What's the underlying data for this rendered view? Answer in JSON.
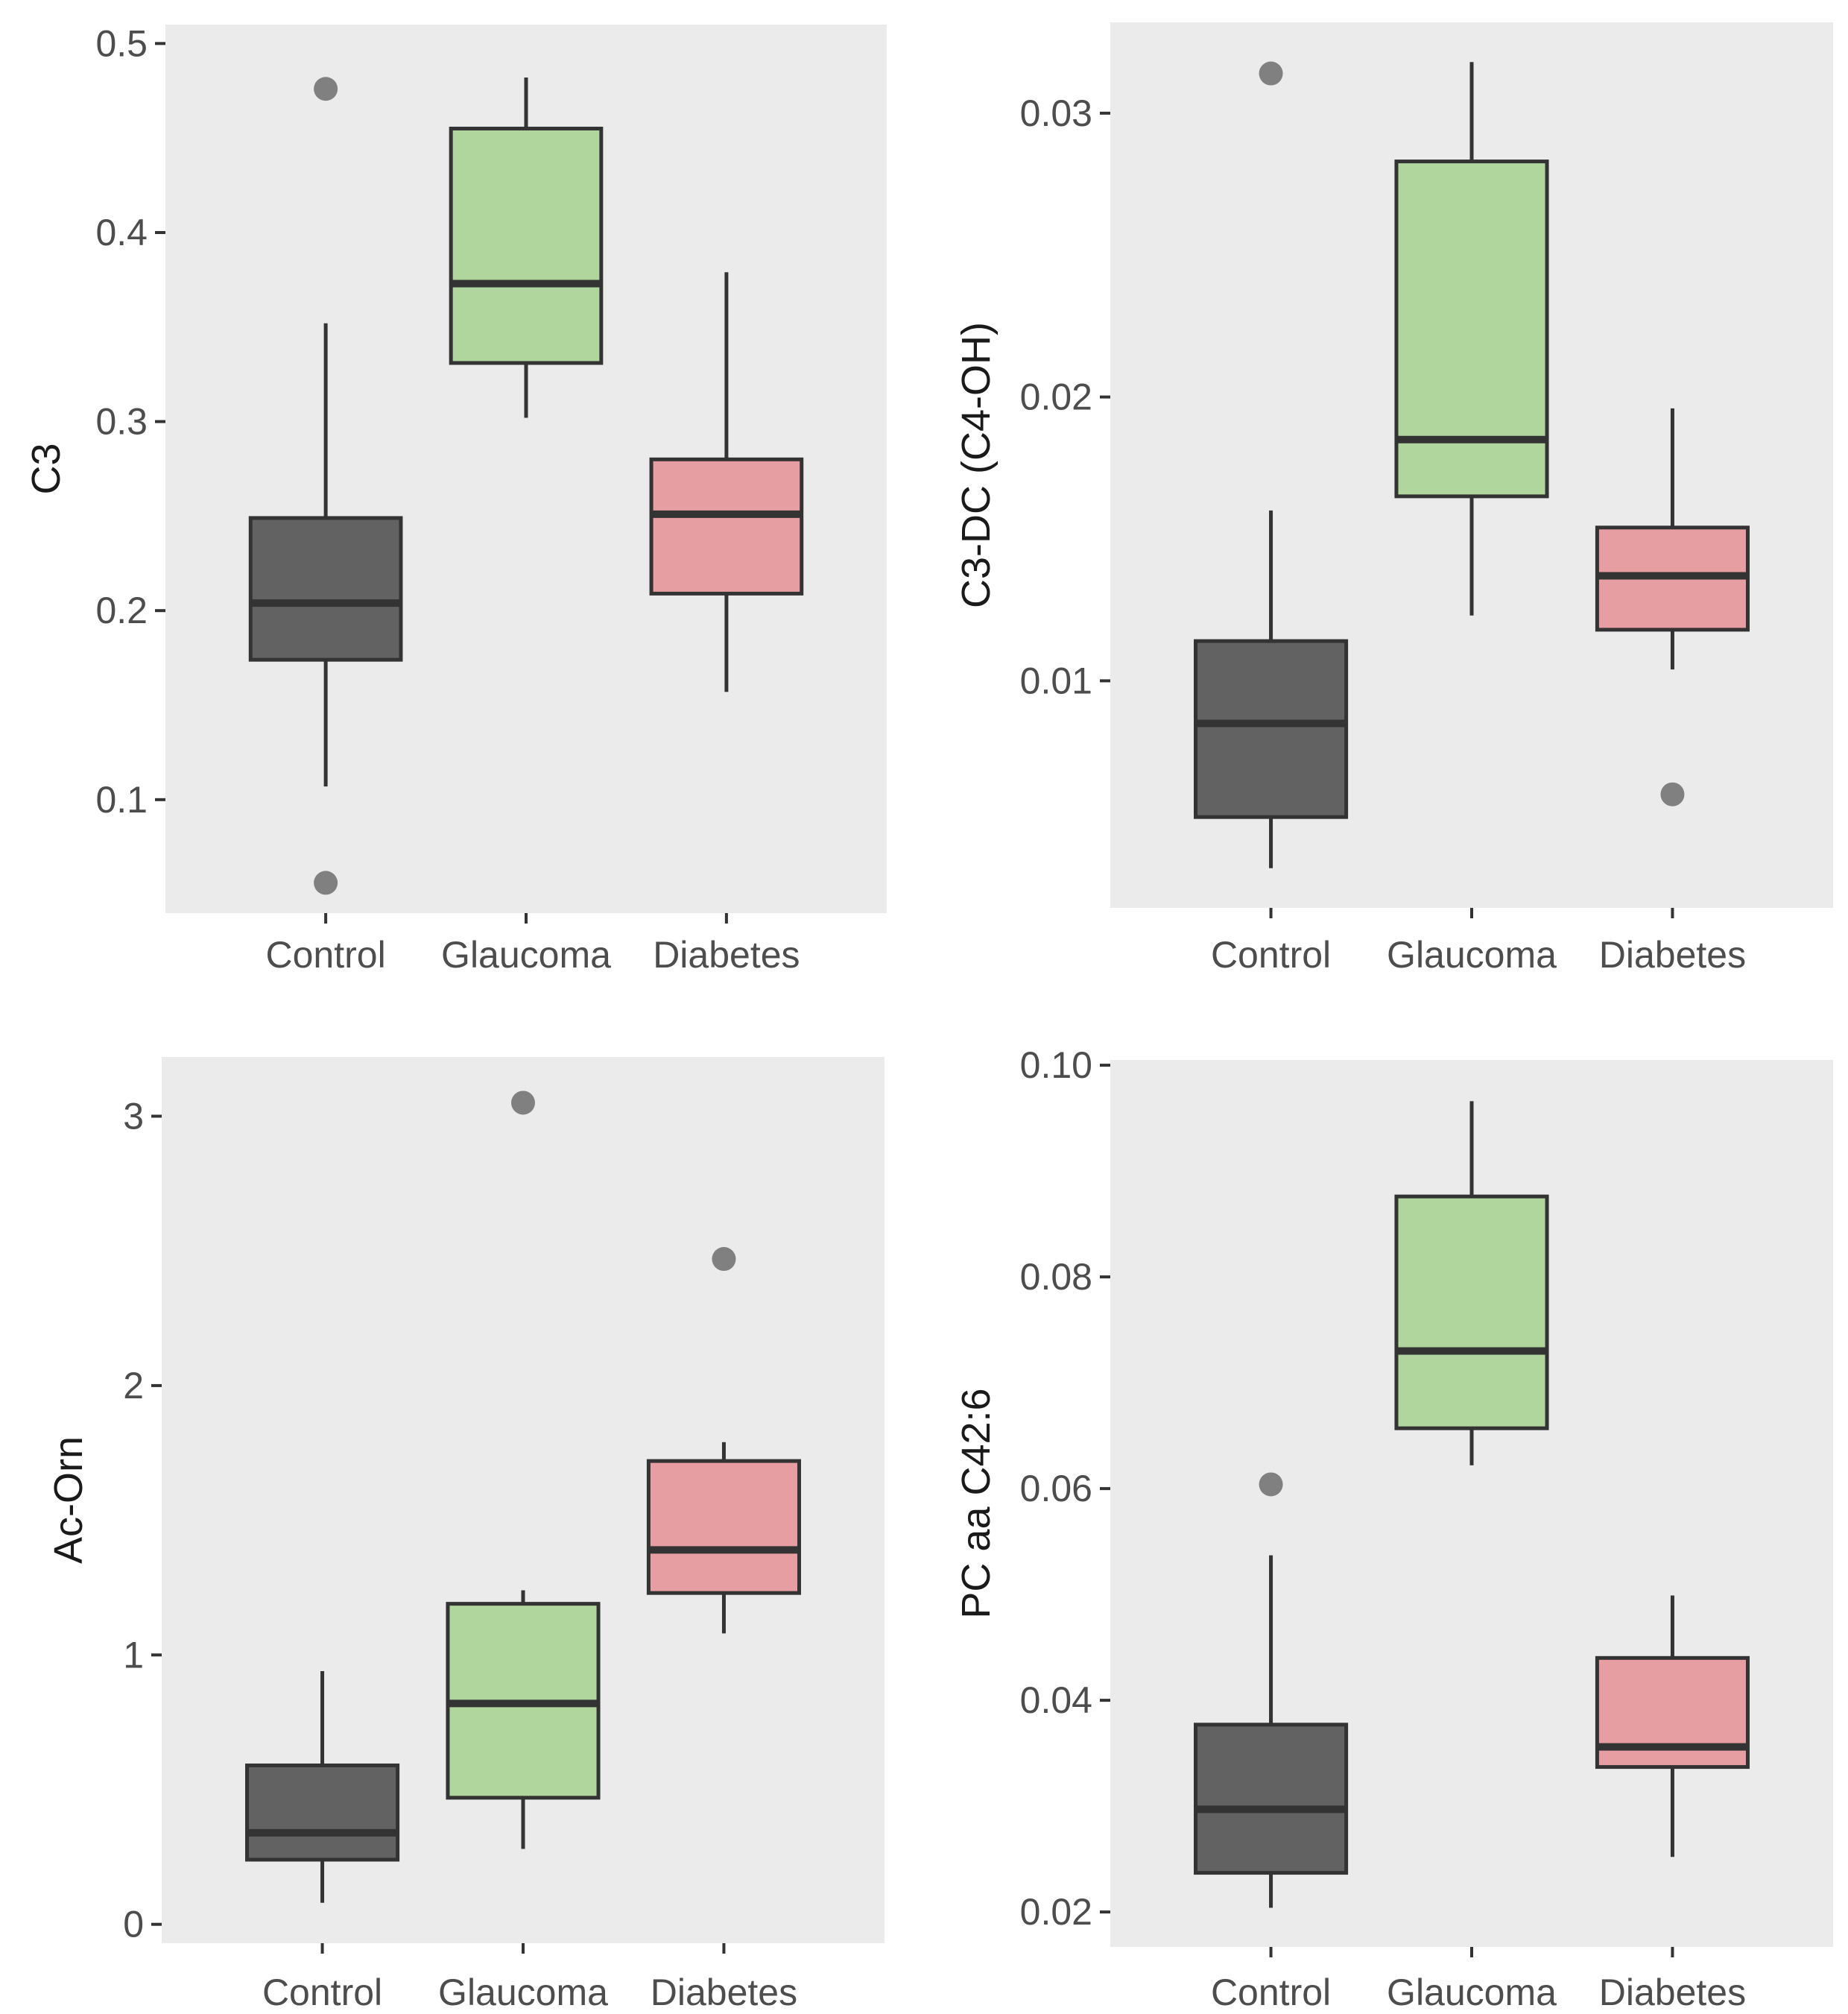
{
  "chart_data": [
    {
      "type": "boxplot",
      "ylabel": "C3",
      "xlabel": "",
      "categories": [
        "Control",
        "Glaucoma",
        "Diabetes"
      ],
      "ylim": [
        0.04,
        0.51
      ],
      "yticks": [
        0.1,
        0.2,
        0.3,
        0.4,
        0.5
      ],
      "ytick_labels": [
        "0.1",
        "0.2",
        "0.3",
        "0.4",
        "0.5"
      ],
      "boxes": [
        {
          "category": "Control",
          "whisker_low": 0.107,
          "q1": 0.174,
          "median": 0.204,
          "q3": 0.249,
          "whisker_high": 0.352,
          "outliers": [
            0.476,
            0.056
          ]
        },
        {
          "category": "Glaucoma",
          "whisker_low": 0.302,
          "q1": 0.331,
          "median": 0.373,
          "q3": 0.455,
          "whisker_high": 0.482,
          "outliers": []
        },
        {
          "category": "Diabetes",
          "whisker_low": 0.157,
          "q1": 0.209,
          "median": 0.251,
          "q3": 0.28,
          "whisker_high": 0.379,
          "outliers": []
        }
      ]
    },
    {
      "type": "boxplot",
      "ylabel": "C3-DC (C4-OH)",
      "xlabel": "",
      "categories": [
        "Control",
        "Glaucoma",
        "Diabetes"
      ],
      "ylim": [
        0.002,
        0.0332
      ],
      "yticks": [
        0.01,
        0.02,
        0.03
      ],
      "ytick_labels": [
        "0.01",
        "0.02",
        "0.03"
      ],
      "boxes": [
        {
          "category": "Control",
          "whisker_low": 0.0034,
          "q1": 0.0052,
          "median": 0.0085,
          "q3": 0.0114,
          "whisker_high": 0.016,
          "outliers": [
            0.0314
          ]
        },
        {
          "category": "Glaucoma",
          "whisker_low": 0.0123,
          "q1": 0.0165,
          "median": 0.0185,
          "q3": 0.0283,
          "whisker_high": 0.0318,
          "outliers": []
        },
        {
          "category": "Diabetes",
          "whisker_low": 0.0104,
          "q1": 0.0118,
          "median": 0.0137,
          "q3": 0.0154,
          "whisker_high": 0.0196,
          "outliers": [
            0.006
          ]
        }
      ]
    },
    {
      "type": "boxplot",
      "ylabel": "Ac-Orn",
      "xlabel": "",
      "categories": [
        "Control",
        "Glaucoma",
        "Diabetes"
      ],
      "ylim": [
        -0.07,
        3.22
      ],
      "yticks": [
        0,
        1,
        2,
        3
      ],
      "ytick_labels": [
        "0",
        "1",
        "2",
        "3"
      ],
      "boxes": [
        {
          "category": "Control",
          "whisker_low": 0.08,
          "q1": 0.24,
          "median": 0.34,
          "q3": 0.59,
          "whisker_high": 0.94,
          "outliers": []
        },
        {
          "category": "Glaucoma",
          "whisker_low": 0.28,
          "q1": 0.47,
          "median": 0.82,
          "q3": 1.19,
          "whisker_high": 1.24,
          "outliers": [
            3.05
          ]
        },
        {
          "category": "Diabetes",
          "whisker_low": 1.08,
          "q1": 1.23,
          "median": 1.39,
          "q3": 1.72,
          "whisker_high": 1.79,
          "outliers": [
            2.47
          ]
        }
      ]
    },
    {
      "type": "boxplot",
      "ylabel": "PC aa C42:6",
      "xlabel": "",
      "categories": [
        "Control",
        "Glaucoma",
        "Diabetes"
      ],
      "ylim": [
        0.0167,
        0.1005
      ],
      "yticks": [
        0.02,
        0.04,
        0.06,
        0.08,
        0.1
      ],
      "ytick_labels": [
        "0.02",
        "0.04",
        "0.06",
        "0.08",
        "0.10"
      ],
      "boxes": [
        {
          "category": "Control",
          "whisker_low": 0.0204,
          "q1": 0.0237,
          "median": 0.0297,
          "q3": 0.0377,
          "whisker_high": 0.0537,
          "outliers": [
            0.0604
          ]
        },
        {
          "category": "Glaucoma",
          "whisker_low": 0.0622,
          "q1": 0.0657,
          "median": 0.073,
          "q3": 0.0876,
          "whisker_high": 0.0966,
          "outliers": []
        },
        {
          "category": "Diabetes",
          "whisker_low": 0.0252,
          "q1": 0.0337,
          "median": 0.0356,
          "q3": 0.044,
          "whisker_high": 0.0499,
          "outliers": []
        }
      ]
    }
  ],
  "colors": {
    "Control": "#626262",
    "Glaucoma": "#b0d59d",
    "Diabetes": "#e69ea2",
    "panel_background": "#ebebeb",
    "outlier": "#808080"
  }
}
